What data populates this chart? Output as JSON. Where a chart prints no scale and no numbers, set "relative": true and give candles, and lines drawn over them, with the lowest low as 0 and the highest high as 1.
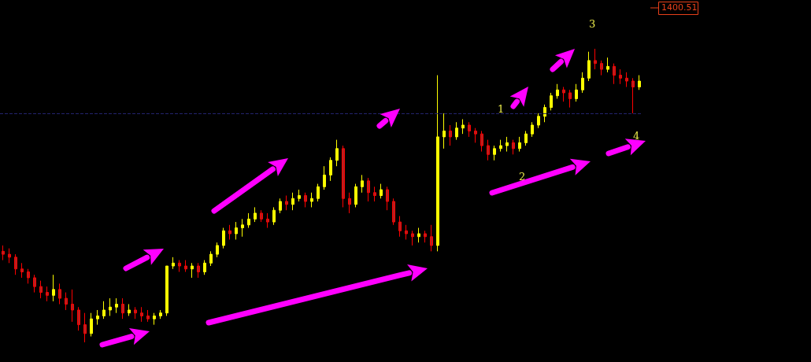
{
  "chart_data": {
    "type": "candlestick",
    "relative": true,
    "categories": [
      null,
      null,
      null,
      null,
      null,
      null,
      null,
      null,
      null,
      null,
      null,
      null,
      null,
      null,
      null,
      null,
      null,
      null,
      null,
      null,
      null,
      null,
      null,
      null,
      null,
      null,
      null,
      null,
      null,
      null,
      null,
      null,
      null,
      null,
      null,
      null,
      null,
      null,
      null,
      null,
      null,
      null,
      null,
      null,
      null,
      null,
      null,
      null,
      null,
      null,
      null,
      null,
      null,
      null,
      null,
      null,
      null,
      null,
      null,
      null,
      null,
      null,
      null,
      null,
      null,
      null,
      null,
      null,
      null,
      null,
      null,
      null,
      null,
      null,
      null,
      null,
      null,
      null,
      null,
      null,
      null,
      null,
      null,
      null,
      null,
      null,
      null,
      null,
      null,
      null,
      null,
      null,
      null,
      null,
      null,
      null,
      null,
      null,
      null,
      null,
      null,
      null
    ],
    "ohlc": [
      [
        0.31,
        0.33,
        0.28,
        0.3
      ],
      [
        0.3,
        0.32,
        0.27,
        0.29
      ],
      [
        0.29,
        0.3,
        0.23,
        0.25
      ],
      [
        0.25,
        0.27,
        0.22,
        0.24
      ],
      [
        0.24,
        0.25,
        0.2,
        0.22
      ],
      [
        0.22,
        0.23,
        0.17,
        0.19
      ],
      [
        0.19,
        0.21,
        0.15,
        0.17
      ],
      [
        0.17,
        0.19,
        0.14,
        0.16
      ],
      [
        0.16,
        0.23,
        0.14,
        0.18
      ],
      [
        0.18,
        0.2,
        0.13,
        0.15
      ],
      [
        0.15,
        0.17,
        0.11,
        0.13
      ],
      [
        0.13,
        0.18,
        0.07,
        0.11
      ],
      [
        0.11,
        0.12,
        0.04,
        0.06
      ],
      [
        0.06,
        0.1,
        0.0,
        0.03
      ],
      [
        0.03,
        0.1,
        0.02,
        0.08
      ],
      [
        0.08,
        0.11,
        0.06,
        0.09
      ],
      [
        0.09,
        0.14,
        0.08,
        0.11
      ],
      [
        0.11,
        0.15,
        0.09,
        0.12
      ],
      [
        0.12,
        0.15,
        0.1,
        0.13
      ],
      [
        0.13,
        0.15,
        0.08,
        0.1
      ],
      [
        0.1,
        0.13,
        0.09,
        0.11
      ],
      [
        0.11,
        0.12,
        0.08,
        0.1
      ],
      [
        0.1,
        0.12,
        0.07,
        0.09
      ],
      [
        0.09,
        0.11,
        0.07,
        0.08
      ],
      [
        0.08,
        0.1,
        0.06,
        0.09
      ],
      [
        0.09,
        0.11,
        0.08,
        0.1
      ],
      [
        0.1,
        0.26,
        0.09,
        0.26
      ],
      [
        0.26,
        0.29,
        0.25,
        0.27
      ],
      [
        0.27,
        0.28,
        0.24,
        0.26
      ],
      [
        0.26,
        0.28,
        0.24,
        0.25
      ],
      [
        0.25,
        0.27,
        0.22,
        0.26
      ],
      [
        0.26,
        0.27,
        0.22,
        0.24
      ],
      [
        0.24,
        0.28,
        0.23,
        0.27
      ],
      [
        0.27,
        0.31,
        0.26,
        0.3
      ],
      [
        0.3,
        0.34,
        0.29,
        0.33
      ],
      [
        0.33,
        0.39,
        0.32,
        0.38
      ],
      [
        0.38,
        0.4,
        0.35,
        0.37
      ],
      [
        0.37,
        0.41,
        0.35,
        0.39
      ],
      [
        0.39,
        0.42,
        0.36,
        0.4
      ],
      [
        0.4,
        0.44,
        0.39,
        0.42
      ],
      [
        0.42,
        0.46,
        0.41,
        0.44
      ],
      [
        0.44,
        0.45,
        0.41,
        0.42
      ],
      [
        0.42,
        0.44,
        0.39,
        0.41
      ],
      [
        0.41,
        0.46,
        0.4,
        0.45
      ],
      [
        0.45,
        0.49,
        0.44,
        0.48
      ],
      [
        0.48,
        0.5,
        0.45,
        0.47
      ],
      [
        0.47,
        0.51,
        0.45,
        0.49
      ],
      [
        0.49,
        0.52,
        0.48,
        0.5
      ],
      [
        0.5,
        0.51,
        0.46,
        0.48
      ],
      [
        0.48,
        0.51,
        0.46,
        0.49
      ],
      [
        0.49,
        0.54,
        0.48,
        0.53
      ],
      [
        0.53,
        0.6,
        0.52,
        0.57
      ],
      [
        0.57,
        0.63,
        0.55,
        0.62
      ],
      [
        0.62,
        0.69,
        0.6,
        0.66
      ],
      [
        0.66,
        0.67,
        0.46,
        0.49
      ],
      [
        0.49,
        0.51,
        0.44,
        0.47
      ],
      [
        0.47,
        0.54,
        0.46,
        0.53
      ],
      [
        0.53,
        0.57,
        0.51,
        0.55
      ],
      [
        0.55,
        0.56,
        0.48,
        0.51
      ],
      [
        0.51,
        0.53,
        0.48,
        0.5
      ],
      [
        0.5,
        0.54,
        0.49,
        0.52
      ],
      [
        0.52,
        0.53,
        0.45,
        0.48
      ],
      [
        0.48,
        0.49,
        0.4,
        0.41
      ],
      [
        0.41,
        0.43,
        0.36,
        0.38
      ],
      [
        0.38,
        0.4,
        0.35,
        0.37
      ],
      [
        0.37,
        0.38,
        0.33,
        0.36
      ],
      [
        0.36,
        0.39,
        0.34,
        0.37
      ],
      [
        0.37,
        0.38,
        0.34,
        0.36
      ],
      [
        0.36,
        0.4,
        0.31,
        0.33
      ],
      [
        0.33,
        0.91,
        0.31,
        0.7
      ],
      [
        0.7,
        0.78,
        0.66,
        0.72
      ],
      [
        0.72,
        0.74,
        0.67,
        0.7
      ],
      [
        0.7,
        0.75,
        0.69,
        0.73
      ],
      [
        0.73,
        0.76,
        0.71,
        0.74
      ],
      [
        0.74,
        0.75,
        0.7,
        0.72
      ],
      [
        0.72,
        0.73,
        0.68,
        0.71
      ],
      [
        0.71,
        0.72,
        0.65,
        0.67
      ],
      [
        0.67,
        0.69,
        0.62,
        0.64
      ],
      [
        0.64,
        0.67,
        0.62,
        0.66
      ],
      [
        0.66,
        0.69,
        0.65,
        0.67
      ],
      [
        0.67,
        0.7,
        0.65,
        0.68
      ],
      [
        0.68,
        0.69,
        0.64,
        0.66
      ],
      [
        0.66,
        0.7,
        0.65,
        0.68
      ],
      [
        0.68,
        0.72,
        0.67,
        0.71
      ],
      [
        0.71,
        0.75,
        0.7,
        0.74
      ],
      [
        0.74,
        0.78,
        0.73,
        0.77
      ],
      [
        0.77,
        0.81,
        0.75,
        0.8
      ],
      [
        0.8,
        0.85,
        0.79,
        0.84
      ],
      [
        0.84,
        0.88,
        0.83,
        0.86
      ],
      [
        0.86,
        0.87,
        0.82,
        0.85
      ],
      [
        0.85,
        0.86,
        0.8,
        0.83
      ],
      [
        0.83,
        0.88,
        0.82,
        0.86
      ],
      [
        0.86,
        0.92,
        0.85,
        0.9
      ],
      [
        0.9,
        0.99,
        0.89,
        0.96
      ],
      [
        0.96,
        1.0,
        0.93,
        0.95
      ],
      [
        0.95,
        0.96,
        0.91,
        0.93
      ],
      [
        0.93,
        0.97,
        0.92,
        0.94
      ],
      [
        0.94,
        0.95,
        0.88,
        0.91
      ],
      [
        0.91,
        0.93,
        0.88,
        0.9
      ],
      [
        0.9,
        0.92,
        0.87,
        0.89
      ],
      [
        0.89,
        0.9,
        0.78,
        0.87
      ],
      [
        0.87,
        0.91,
        0.86,
        0.89
      ]
    ],
    "ref_lines": [
      {
        "axis": "y",
        "value": 0.78,
        "color": "#24246e",
        "line_style": "dashed"
      }
    ],
    "annotations": [
      "1",
      "2",
      "3",
      "4",
      "1400.51"
    ]
  }
}
